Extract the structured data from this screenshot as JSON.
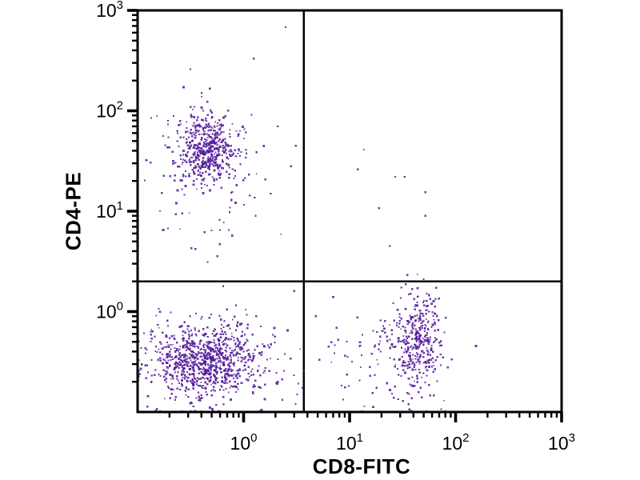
{
  "chart_data": {
    "type": "scatter",
    "title": "",
    "xlabel": "CD8-FITC",
    "ylabel": "CD4-PE",
    "x_axis": {
      "scale": "log",
      "min": 0.1,
      "max": 1000,
      "tick_base": "10",
      "tick_exponents": [
        0,
        1,
        2,
        3
      ],
      "tick_labels": [
        "10⁰",
        "10¹",
        "10²",
        "10³"
      ]
    },
    "y_axis": {
      "scale": "log",
      "min": 0.1,
      "max": 1000,
      "tick_base": "10",
      "tick_exponents": [
        0,
        1,
        2,
        3
      ],
      "tick_labels": [
        "10⁰",
        "10¹",
        "10²",
        "10³"
      ]
    },
    "quadrant_gates": {
      "x": 3.7,
      "y": 2.0
    },
    "dot_color": "#551a9b",
    "axis_color": "#000000",
    "background": "#ffffff",
    "populations": [
      {
        "name": "CD4-positive upper-left cluster",
        "approx_center": [
          0.45,
          42
        ],
        "components": [
          {
            "center": [
              0.45,
              42
            ],
            "sigma_decades": [
              0.13,
              0.16
            ],
            "n": 430
          },
          {
            "center": [
              0.45,
              36
            ],
            "sigma_decades": [
              0.25,
              0.3
            ],
            "n": 140
          },
          {
            "center": [
              0.55,
              11
            ],
            "sigma_decades": [
              0.22,
              0.3
            ],
            "n": 22
          }
        ]
      },
      {
        "name": "double-negative lower-left cluster",
        "approx_center": [
          0.4,
          0.32
        ],
        "components": [
          {
            "center": [
              0.4,
              0.32
            ],
            "sigma_decades": [
              0.24,
              0.17
            ],
            "n": 650
          },
          {
            "center": [
              0.55,
              0.33
            ],
            "sigma_decades": [
              0.34,
              0.24
            ],
            "n": 280
          }
        ]
      },
      {
        "name": "CD8-positive lower-right cluster",
        "approx_center": [
          45,
          0.48
        ],
        "components": [
          {
            "center": [
              45,
              0.48
            ],
            "sigma_decades": [
              0.11,
              0.24
            ],
            "n": 270
          },
          {
            "center": [
              38,
              0.42
            ],
            "sigma_decades": [
              0.2,
              0.3
            ],
            "n": 110
          },
          {
            "center": [
              16,
              0.45
            ],
            "sigma_decades": [
              0.25,
              0.28
            ],
            "n": 55
          }
        ]
      }
    ],
    "outlier_points": [
      [
        2.5,
        680
      ],
      [
        1.25,
        330
      ],
      [
        0.48,
        166
      ],
      [
        13.6,
        41
      ],
      [
        12,
        26
      ],
      [
        27,
        22
      ],
      [
        33,
        22
      ],
      [
        52,
        15.5
      ],
      [
        19,
        10.7
      ],
      [
        52,
        9
      ],
      [
        24,
        4.5
      ],
      [
        2.8,
        28
      ],
      [
        3.1,
        45
      ],
      [
        2.1,
        70
      ],
      [
        1.8,
        15
      ],
      [
        1.3,
        9
      ],
      [
        0.35,
        4.2
      ],
      [
        0.6,
        6.5
      ],
      [
        50,
        2.1
      ],
      [
        4.8,
        0.9
      ],
      [
        5.2,
        0.33
      ],
      [
        7,
        1.4
      ],
      [
        3.2,
        0.15
      ],
      [
        3.0,
        1.6
      ]
    ]
  }
}
